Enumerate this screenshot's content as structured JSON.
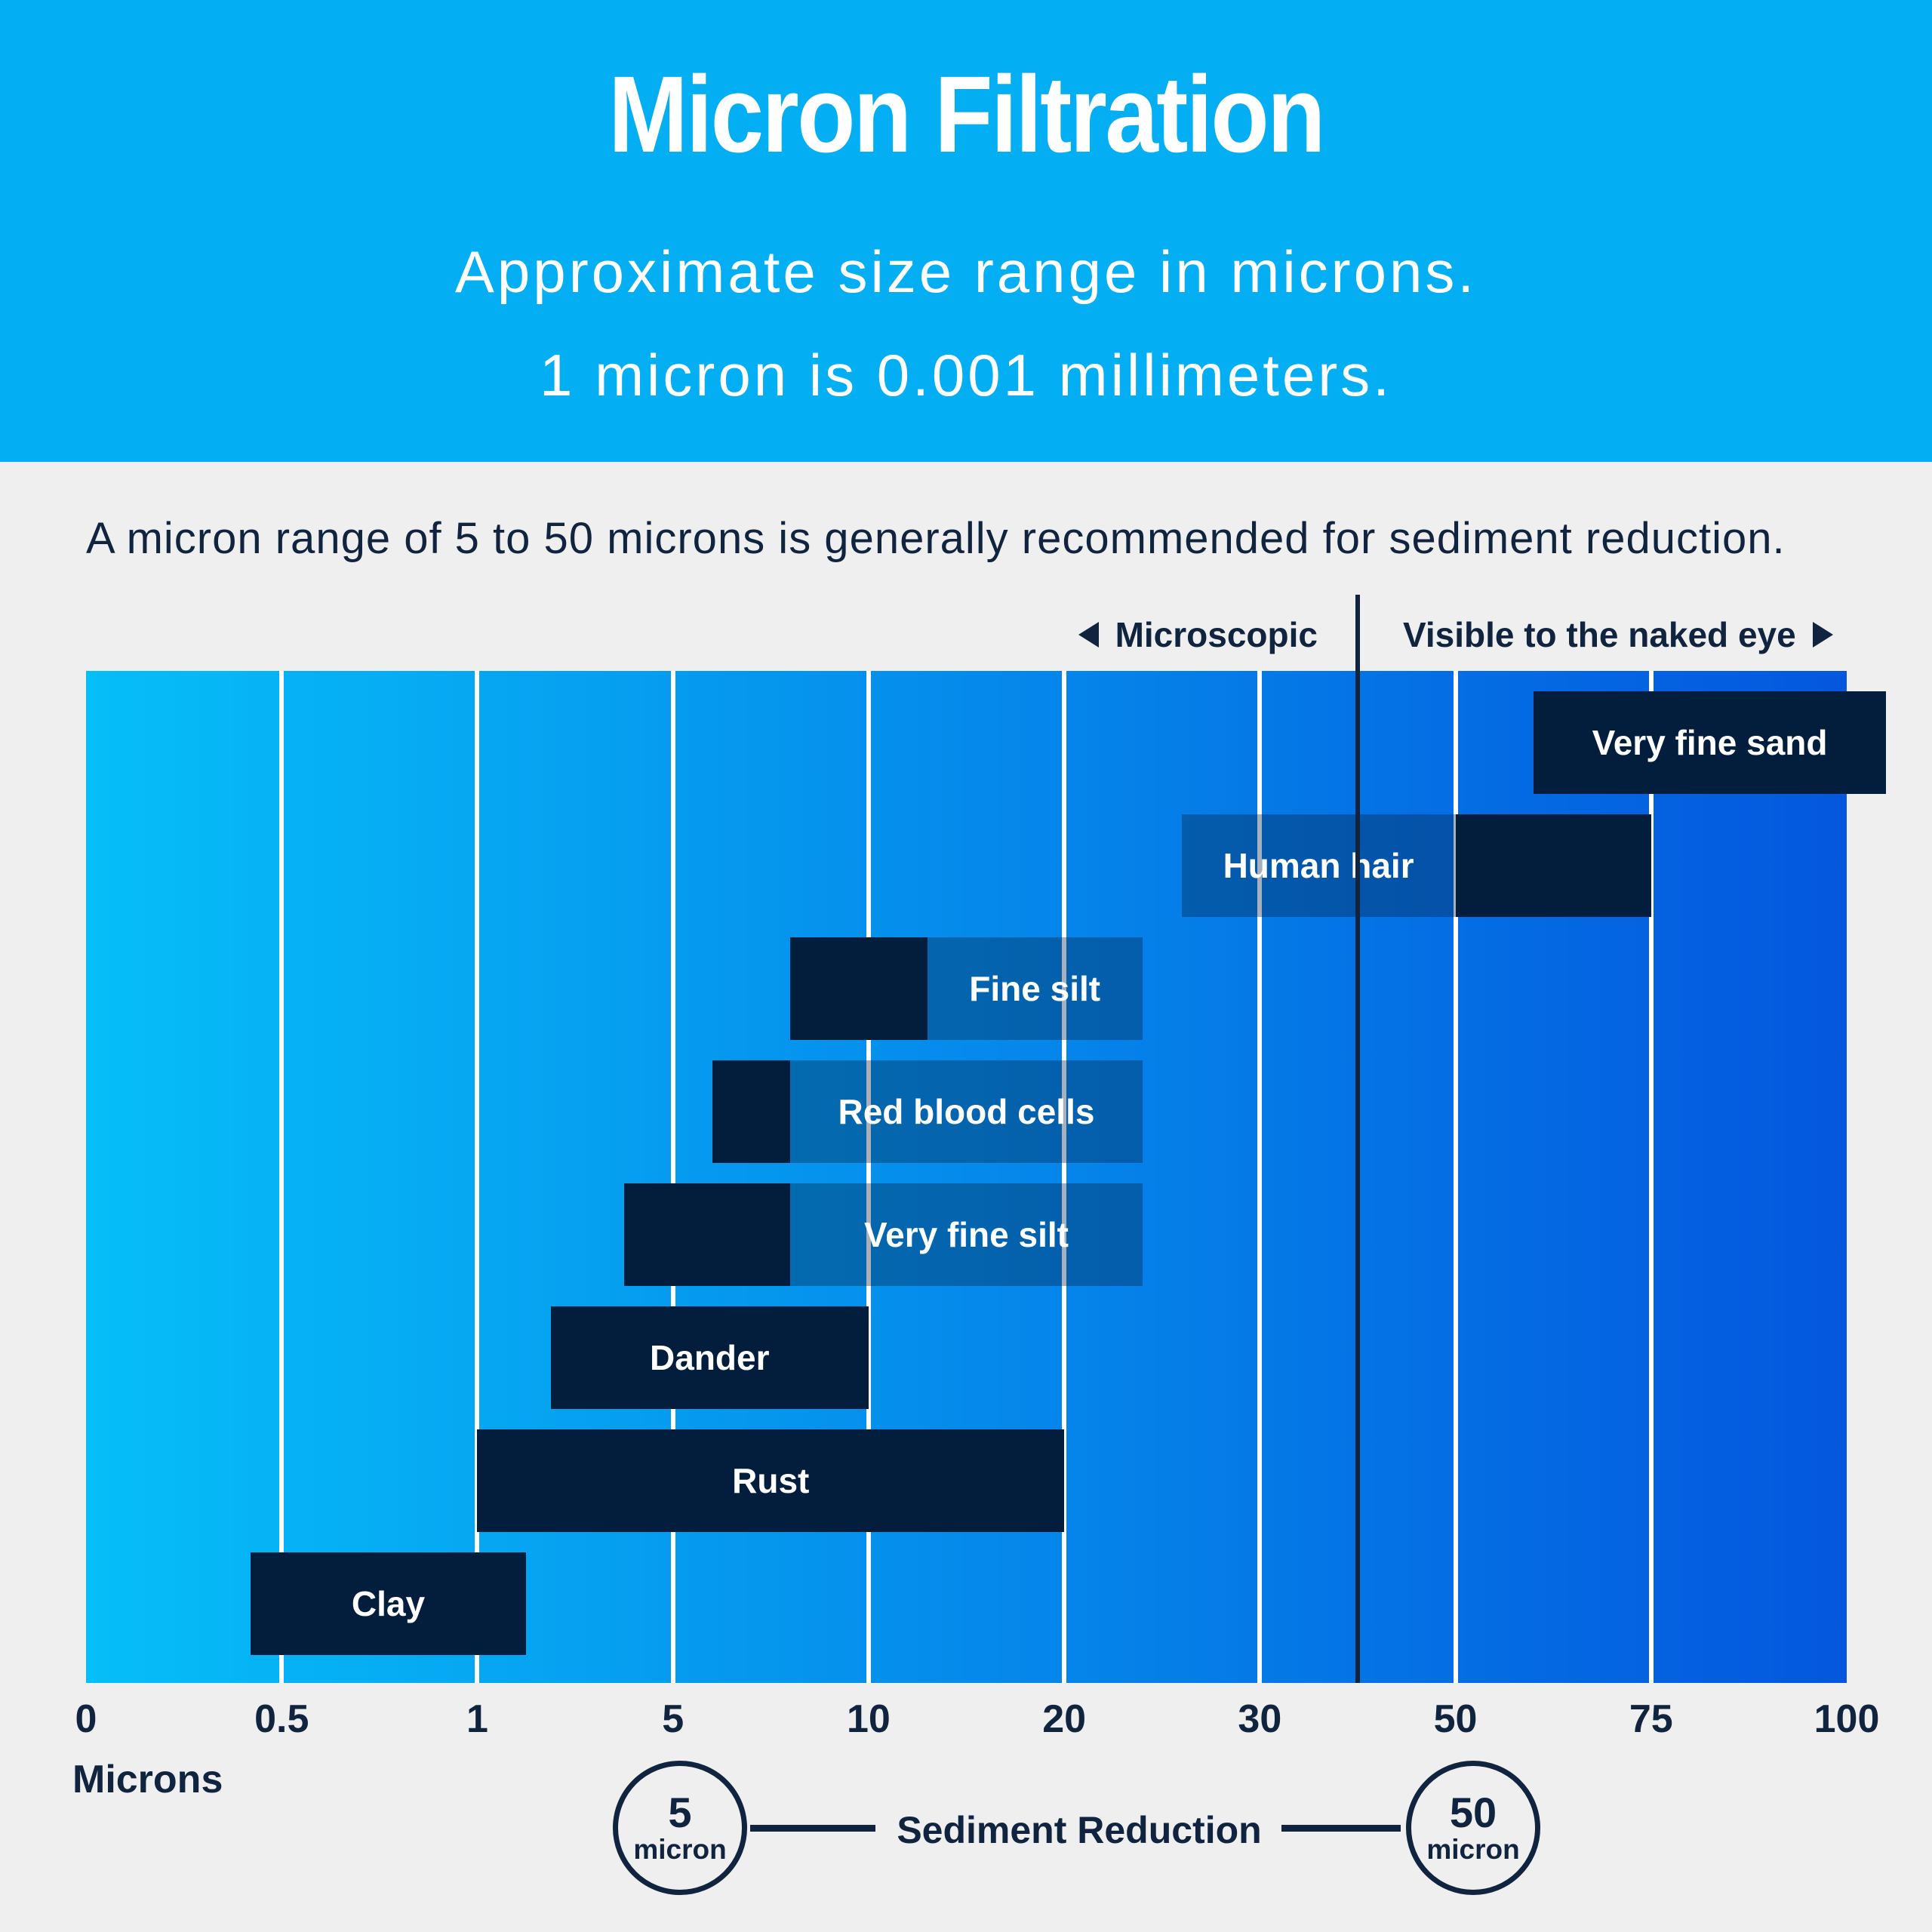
{
  "header": {
    "title": "Micron Filtration",
    "subtitle_line1": "Approximate size range in microns.",
    "subtitle_line2": "1 micron is 0.001 millimeters.",
    "background": "#04AEF2"
  },
  "intro": {
    "text": "A micron range of 5 to 50 microns is generally recommended for sediment reduction."
  },
  "regions": {
    "left_label": "Microscopic",
    "right_label": "Visible to the naked eye",
    "divider_value_microns": 40
  },
  "chart_data": {
    "type": "bar",
    "orientation": "horizontal-range",
    "unit": "microns",
    "xlabel": "Microns",
    "axis_ticks": [
      0,
      0.5,
      1,
      5,
      10,
      20,
      30,
      50,
      75,
      100
    ],
    "tick_labels": [
      "0",
      "0.5",
      "1",
      "5",
      "10",
      "20",
      "30",
      "50",
      "75",
      "100"
    ],
    "grid": true,
    "gradient": [
      "#06BEF8",
      "#0457DE"
    ],
    "bar_color": "#031E3C",
    "label_box_color": "rgba(3,30,60,0.35)",
    "series": [
      {
        "label": "Very fine sand",
        "range_microns": [
          60,
          100
        ],
        "bar": [
          60,
          105
        ],
        "label_box": null,
        "label_in": "bar"
      },
      {
        "label": "Human hair",
        "range_microns": [
          50,
          75
        ],
        "bar": [
          50,
          75
        ],
        "label_box": [
          26,
          50
        ],
        "label_in": "box"
      },
      {
        "label": "Fine silt",
        "range_microns": [
          8,
          13
        ],
        "bar": [
          8,
          13
        ],
        "label_box": [
          13,
          24
        ],
        "label_in": "box"
      },
      {
        "label": "Red blood cells",
        "range_microns": [
          6,
          8
        ],
        "bar": [
          6,
          8
        ],
        "label_box": [
          8,
          24
        ],
        "label_in": "box"
      },
      {
        "label": "Very fine silt",
        "range_microns": [
          4,
          8
        ],
        "bar": [
          4,
          8
        ],
        "label_box": [
          8,
          24
        ],
        "label_in": "box"
      },
      {
        "label": "Dander",
        "range_microns": [
          2.5,
          10
        ],
        "bar": [
          2.5,
          10
        ],
        "label_box": null,
        "label_in": "bar"
      },
      {
        "label": "Rust",
        "range_microns": [
          1,
          20
        ],
        "bar": [
          1,
          20
        ],
        "label_box": null,
        "label_in": "bar"
      },
      {
        "label": "Clay",
        "range_microns": [
          0.4,
          2
        ],
        "bar": [
          0.42,
          2
        ],
        "label_box": null,
        "label_in": "bar"
      }
    ]
  },
  "legend": {
    "left_circle_value": "5",
    "left_circle_unit": "micron",
    "center_label": "Sediment Reduction",
    "right_circle_value": "50",
    "right_circle_unit": "micron"
  },
  "colors": {
    "page_background": "#EFEFEF",
    "navy": "#031E3C",
    "text_navy": "#10243F",
    "white": "#FFFFFF"
  }
}
